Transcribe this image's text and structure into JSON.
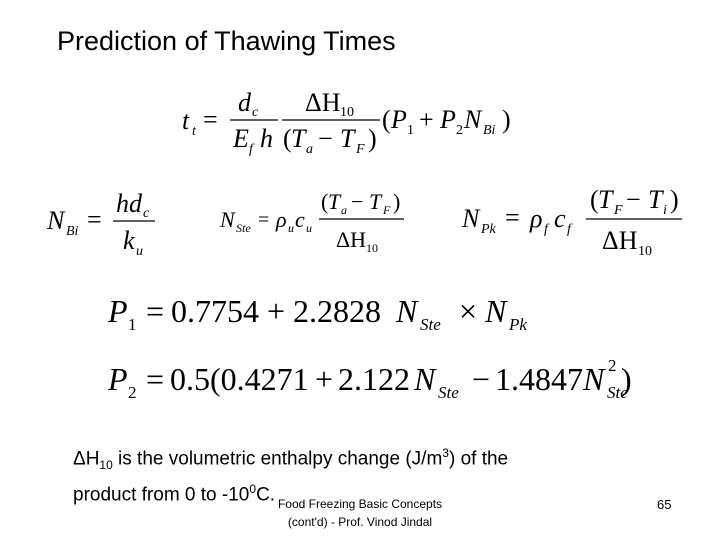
{
  "slide": {
    "title": "Prediction of Thawing Times",
    "equations": {
      "thaw_time": "t_t = (d_c / (E_f h)) · (ΔH_10 / (T_a − T_F)) · (P_1 + P_2 N_Bi)",
      "biot_number": "N_Bi = h d_c / k_u",
      "stefan_number": "N_Ste = ρ_u c_u (T_a − T_F) / ΔH_10",
      "plank_number": "N_Pk = ρ_f c_f (T_F − T_i) / ΔH_10",
      "p1": "P_1 = 0.7754 + 2.2828 N_Ste × N_Pk",
      "p2": "P_2 = 0.5(0.4271 + 2.122 N_Ste − 1.4847 N_Ste^2)"
    },
    "note": {
      "symbol": "ΔH",
      "symbol_sub": "10",
      "text_a": "  is the volumetric enthalpy change (J/m",
      "unit_sup": "3",
      "text_b": ") of the",
      "line2_a": "product from 0 to -10",
      "deg_sup": "0",
      "line2_b": "C."
    },
    "footer": {
      "line1": "Food Freezing Basic Concepts",
      "line2": "(cont'd) - Prof. Vinod Jindal"
    },
    "page_number": "65"
  }
}
